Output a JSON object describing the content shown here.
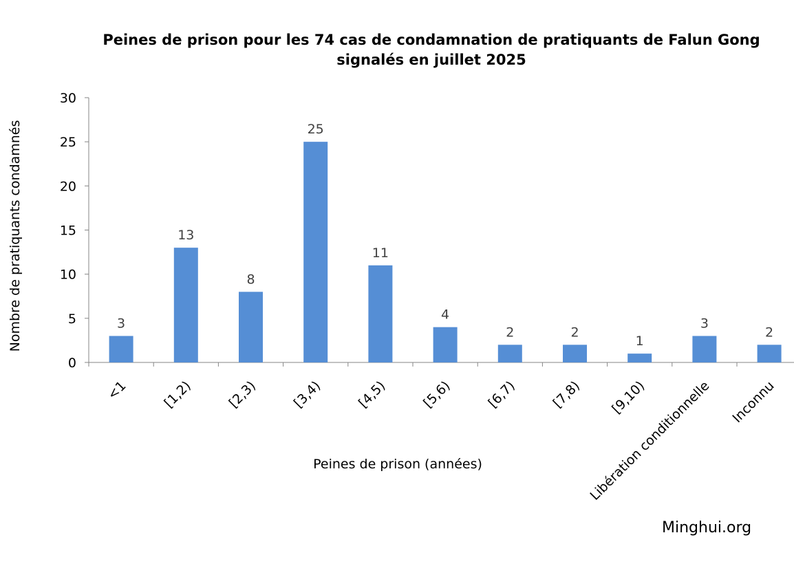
{
  "chart_data": {
    "type": "bar",
    "title_lines": [
      "Peines de prison pour les 74 cas de condamnation de pratiquants de Falun Gong",
      "signalés en juillet 2025"
    ],
    "xlabel": "Peines de prison (années)",
    "ylabel": "Nombre de pratiquants condamnés",
    "categories": [
      "<1",
      "[1,2)",
      "[2,3)",
      "[3,4)",
      "[4,5)",
      "[5,6)",
      "[6,7)",
      "[7,8)",
      "[9,10)",
      "Libération conditionnelle",
      "Inconnu"
    ],
    "values": [
      3,
      13,
      8,
      25,
      11,
      4,
      2,
      2,
      1,
      3,
      2
    ],
    "ylim": [
      0,
      30
    ],
    "yticks": [
      0,
      5,
      10,
      15,
      20,
      25,
      30
    ],
    "grid": false,
    "legend": "none",
    "bar_color": "#558ED5",
    "data_labels": true
  },
  "watermark": "Minghui.org"
}
